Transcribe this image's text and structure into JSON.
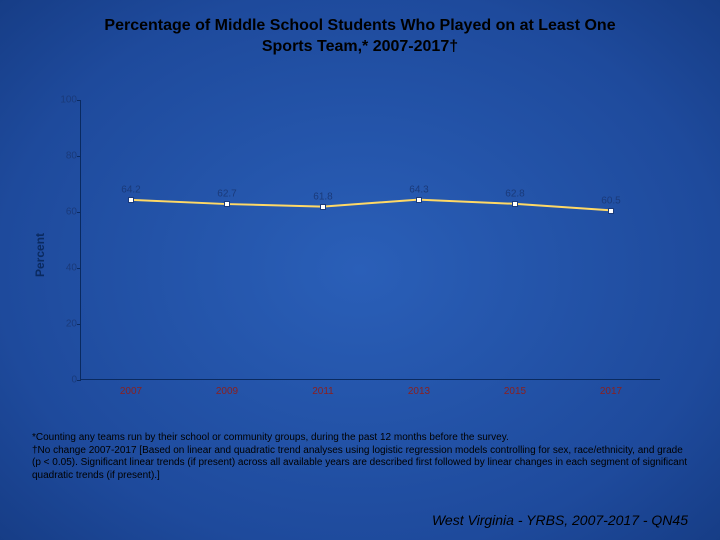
{
  "title_line1": "Percentage of Middle School Students Who Played on at Least One",
  "title_line2": "Sports Team,* 2007-2017†",
  "chart": {
    "type": "line",
    "ylabel": "Percent",
    "ylim": [
      0,
      100
    ],
    "ytick_step": 20,
    "yticks": [
      0,
      20,
      40,
      60,
      80,
      100
    ],
    "xticks": [
      "2007",
      "2009",
      "2011",
      "2013",
      "2015",
      "2017"
    ],
    "values": [
      64.2,
      62.7,
      61.8,
      64.3,
      62.8,
      60.5
    ],
    "line_color": "#ffd966",
    "line_width": 2,
    "marker_border": "#1a3a7a",
    "marker_fill": "#ffffff",
    "marker_size": 6,
    "label_color": "#1a3a7a",
    "axis_color": "#0a2a60",
    "xlabel_color": "#8a2020",
    "background": "radial-gradient blue"
  },
  "footnote_star": "*Counting any teams run by their school or community groups, during the past 12 months before the survey.",
  "footnote_dagger": "†No change 2007-2017 [Based on linear and quadratic trend analyses using logistic regression models controlling for sex, race/ethnicity, and grade (p < 0.05). Significant linear trends (if present) across all available years are described first followed by linear changes in each segment of significant quadratic trends (if present).]",
  "source": "West Virginia - YRBS, 2007-2017 - QN45"
}
